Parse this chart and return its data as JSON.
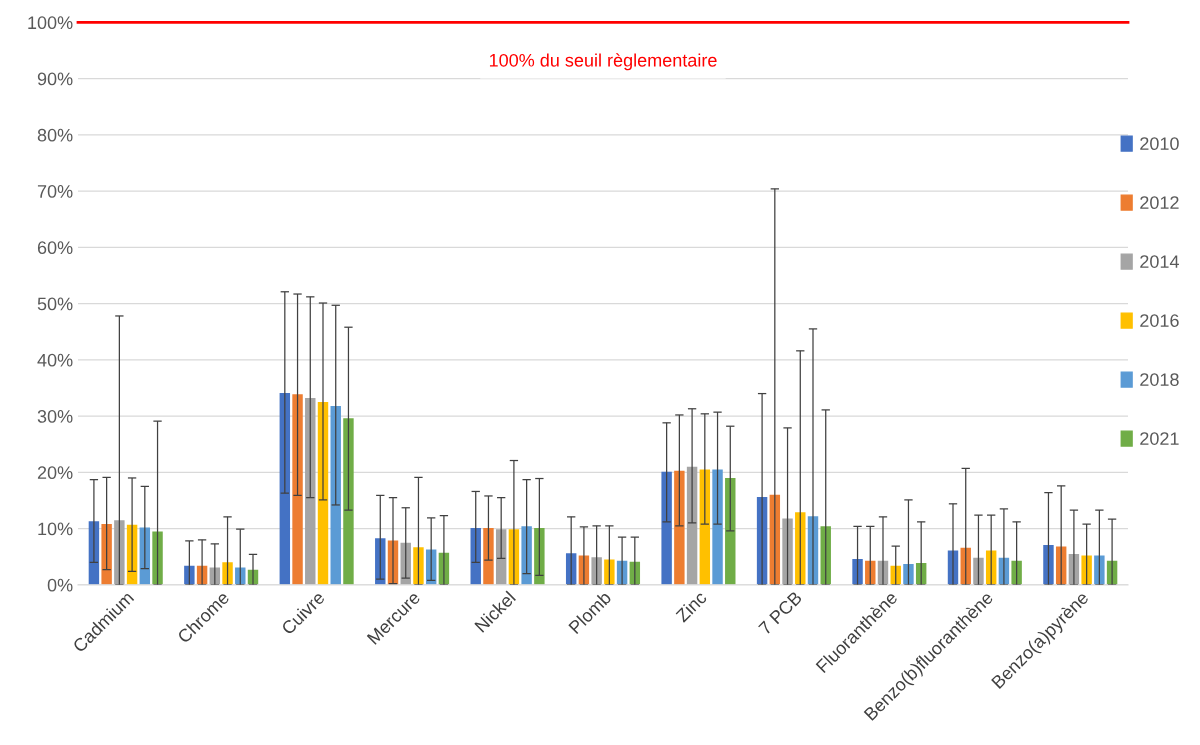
{
  "chart_data": {
    "type": "bar",
    "categories": [
      "Cadmium",
      "Chrome",
      "Cuivre",
      "Mercure",
      "Nickel",
      "Plomb",
      "Zinc",
      "7 PCB",
      "Fluoranthène",
      "Benzo(b)fluoranthène",
      "Benzo(a)pyrène"
    ],
    "series": [
      {
        "name": "2010",
        "color": "#4472c4",
        "values": [
          11.3,
          3.4,
          34.1,
          8.3,
          10.1,
          5.6,
          20.1,
          15.6,
          4.6,
          6.1,
          7.1
        ],
        "errors": [
          [
            4.0,
            18.7
          ],
          [
            0,
            7.8
          ],
          [
            16.3,
            52.1
          ],
          [
            1.0,
            15.9
          ],
          [
            4.0,
            16.6
          ],
          [
            0,
            12.1
          ],
          [
            11.2,
            28.8
          ],
          [
            0,
            34.0
          ],
          [
            0,
            10.4
          ],
          [
            0,
            14.4
          ],
          [
            0,
            16.4
          ]
        ]
      },
      {
        "name": "2012",
        "color": "#ed7d31",
        "values": [
          10.8,
          3.4,
          33.9,
          7.9,
          10.1,
          5.2,
          20.3,
          16.0,
          4.3,
          6.6,
          6.8
        ],
        "errors": [
          [
            2.7,
            19.1
          ],
          [
            0,
            8.0
          ],
          [
            15.9,
            51.7
          ],
          [
            0.2,
            15.5
          ],
          [
            4.4,
            15.8
          ],
          [
            0,
            10.3
          ],
          [
            10.5,
            30.2
          ],
          [
            0,
            70.4
          ],
          [
            0,
            10.4
          ],
          [
            0,
            20.7
          ],
          [
            0,
            17.6
          ]
        ]
      },
      {
        "name": "2014",
        "color": "#a5a5a5",
        "values": [
          11.5,
          3.1,
          33.2,
          7.5,
          9.9,
          4.9,
          21.0,
          11.8,
          4.3,
          4.8,
          5.5
        ],
        "errors": [
          [
            0,
            47.8
          ],
          [
            0,
            7.3
          ],
          [
            15.5,
            51.2
          ],
          [
            1.2,
            13.7
          ],
          [
            4.7,
            15.5
          ],
          [
            0,
            10.5
          ],
          [
            11.0,
            31.3
          ],
          [
            0,
            27.9
          ],
          [
            0,
            12.1
          ],
          [
            0,
            12.4
          ],
          [
            0,
            13.3
          ]
        ]
      },
      {
        "name": "2016",
        "color": "#ffc000",
        "values": [
          10.7,
          4.0,
          32.5,
          6.7,
          9.9,
          4.5,
          20.5,
          12.9,
          3.4,
          6.1,
          5.2
        ],
        "errors": [
          [
            2.4,
            19.0
          ],
          [
            0,
            12.1
          ],
          [
            15.1,
            50.1
          ],
          [
            0,
            19.1
          ],
          [
            0,
            22.1
          ],
          [
            0,
            10.5
          ],
          [
            10.8,
            30.4
          ],
          [
            0,
            41.6
          ],
          [
            0,
            6.9
          ],
          [
            0,
            12.4
          ],
          [
            0,
            10.8
          ]
        ]
      },
      {
        "name": "2018",
        "color": "#5b9bd5",
        "values": [
          10.2,
          3.1,
          31.8,
          6.3,
          10.4,
          4.3,
          20.5,
          12.2,
          3.7,
          4.8,
          5.2
        ],
        "errors": [
          [
            2.9,
            17.5
          ],
          [
            0,
            9.9
          ],
          [
            14.2,
            49.7
          ],
          [
            0.8,
            11.9
          ],
          [
            2.0,
            18.7
          ],
          [
            0,
            8.5
          ],
          [
            10.8,
            30.7
          ],
          [
            0,
            45.5
          ],
          [
            0,
            15.1
          ],
          [
            0,
            13.5
          ],
          [
            0,
            13.3
          ]
        ]
      },
      {
        "name": "2021",
        "color": "#70ad47",
        "values": [
          9.5,
          2.7,
          29.6,
          5.7,
          10.1,
          4.1,
          19.0,
          10.4,
          3.9,
          4.3,
          4.3
        ],
        "errors": [
          [
            0,
            29.1
          ],
          [
            0,
            5.4
          ],
          [
            13.3,
            45.8
          ],
          [
            0,
            12.3
          ],
          [
            1.7,
            18.9
          ],
          [
            0,
            8.5
          ],
          [
            9.6,
            28.2
          ],
          [
            0,
            31.1
          ],
          [
            0,
            11.2
          ],
          [
            0,
            11.2
          ],
          [
            0,
            11.7
          ]
        ]
      }
    ],
    "ylim": [
      0,
      100
    ],
    "yticks": [
      {
        "value": 0,
        "label": "0%"
      },
      {
        "value": 10,
        "label": "10%"
      },
      {
        "value": 20,
        "label": "20%"
      },
      {
        "value": 30,
        "label": "30%"
      },
      {
        "value": 40,
        "label": "40%"
      },
      {
        "value": 50,
        "label": "50%"
      },
      {
        "value": 60,
        "label": "60%"
      },
      {
        "value": 70,
        "label": "70%"
      },
      {
        "value": 80,
        "label": "80%"
      },
      {
        "value": 90,
        "label": "90%"
      },
      {
        "value": 100,
        "label": "100%"
      }
    ],
    "ref_lines": [
      {
        "axis": "y",
        "value": 100,
        "label": "100% du seuil règlementaire",
        "color": "#ff0000"
      }
    ],
    "grid": "y",
    "legend": "right"
  }
}
